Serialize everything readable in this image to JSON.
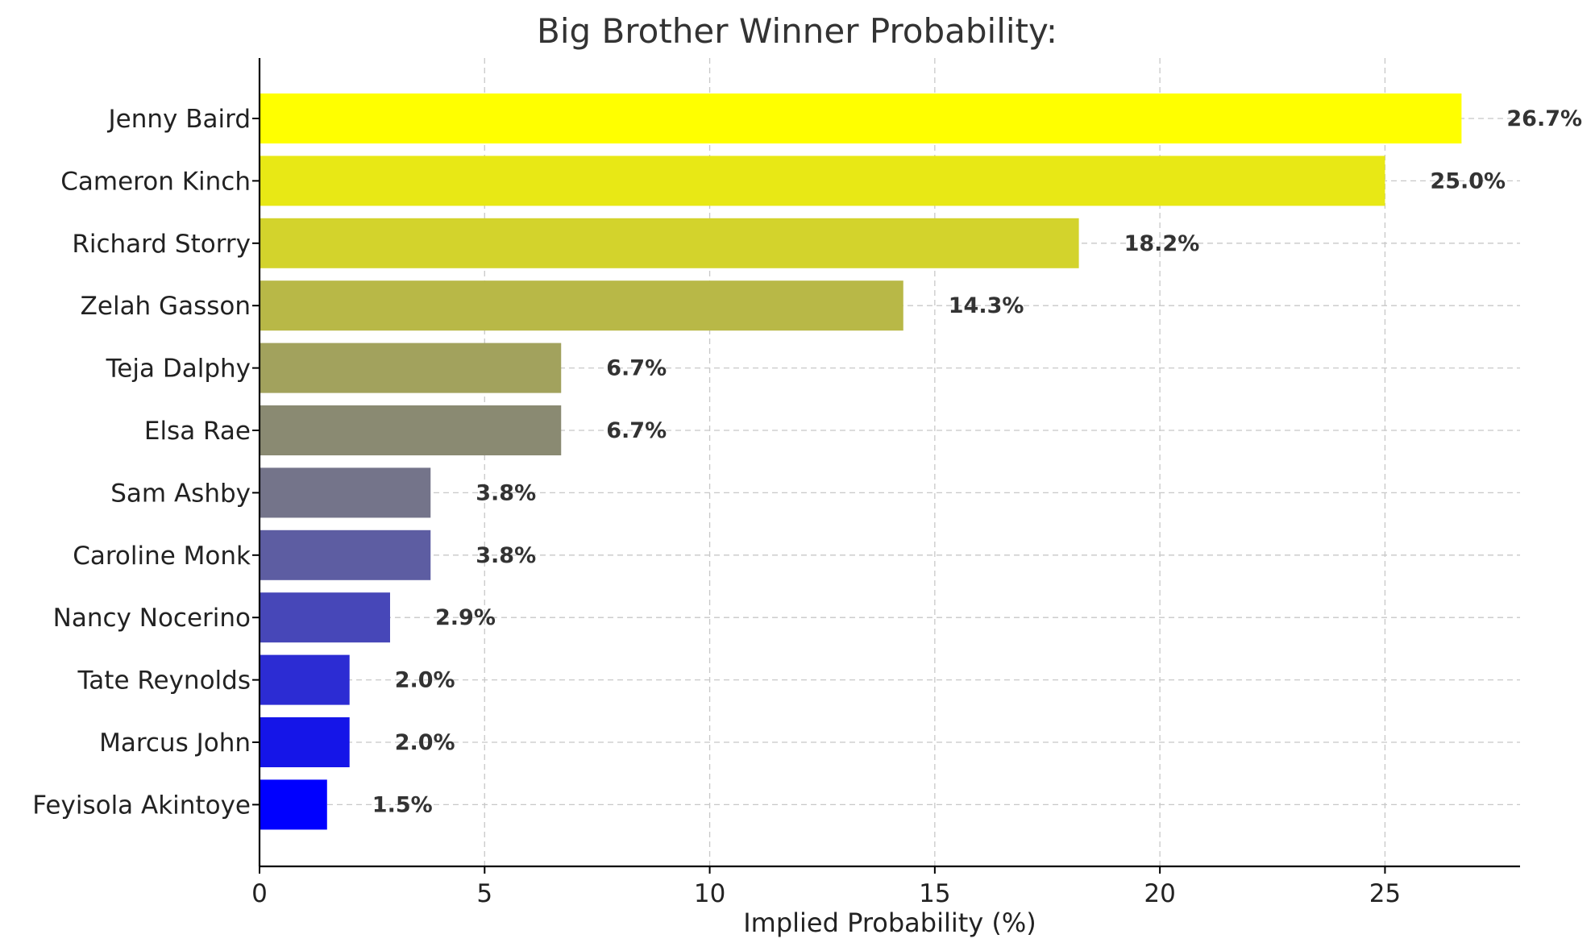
{
  "chart_data": {
    "type": "bar",
    "orientation": "horizontal",
    "title": "Big Brother Winner Probability:",
    "xlabel": "Implied Probability (%)",
    "ylabel": "",
    "xlim": [
      0,
      28
    ],
    "xticks": [
      0,
      5,
      10,
      15,
      20,
      25
    ],
    "grid": true,
    "categories": [
      "Jenny Baird",
      "Cameron Kinch",
      "Richard Storry",
      "Zelah Gasson",
      "Teja Dalphy",
      "Elsa Rae",
      "Sam Ashby",
      "Caroline Monk",
      "Nancy Nocerino",
      "Tate Reynolds",
      "Marcus John",
      "Feyisola Akintoye"
    ],
    "values": [
      26.7,
      25.0,
      18.2,
      14.3,
      6.7,
      6.7,
      3.8,
      3.8,
      2.9,
      2.0,
      2.0,
      1.5
    ],
    "data_labels": [
      "26.7%",
      "25.0%",
      "18.2%",
      "14.3%",
      "6.7%",
      "6.7%",
      "3.8%",
      "3.8%",
      "2.9%",
      "2.0%",
      "2.0%",
      "1.5%"
    ],
    "colors": [
      "#ffff00",
      "#e8e815",
      "#d3d32c",
      "#b8b847",
      "#a2a25d",
      "#8a8a72",
      "#74748a",
      "#5d5da2",
      "#4747b8",
      "#2c2cd3",
      "#1515e8",
      "#0000ff"
    ]
  }
}
